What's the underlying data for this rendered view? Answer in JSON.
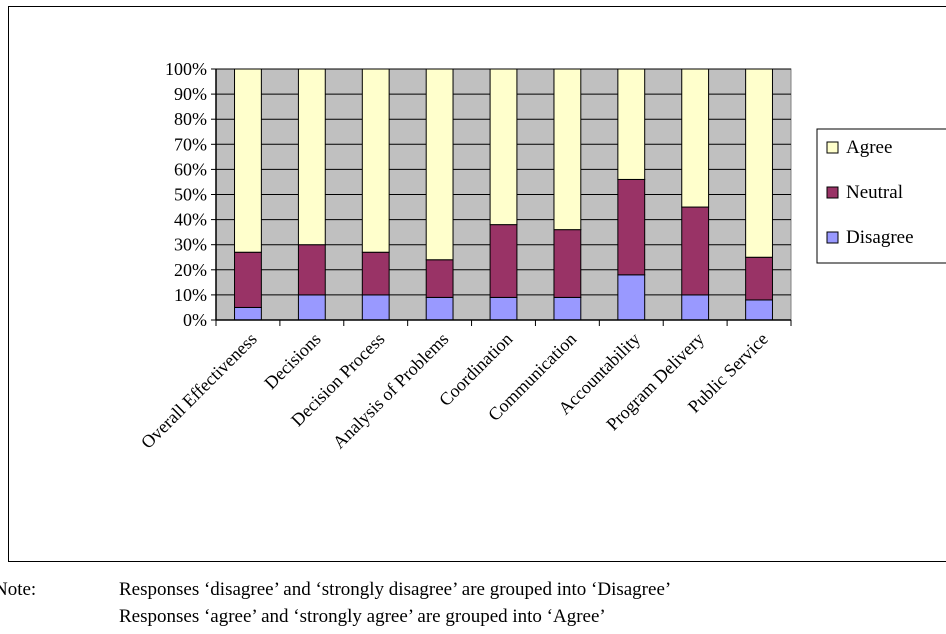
{
  "chart_data": {
    "type": "bar",
    "stacked": "percent",
    "categories": [
      "Overall Effectiveness",
      "Decisions",
      "Decision Process",
      "Analysis of Problems",
      "Coordination",
      "Communication",
      "Accountability",
      "Program Delivery",
      "Public Service"
    ],
    "series": [
      {
        "name": "Disagree",
        "color": "#9999ff",
        "values": [
          5,
          10,
          10,
          9,
          9,
          9,
          18,
          10,
          8
        ]
      },
      {
        "name": "Neutral",
        "color": "#993366",
        "values": [
          22,
          20,
          17,
          15,
          29,
          27,
          38,
          35,
          17
        ]
      },
      {
        "name": "Agree",
        "color": "#ffffcc",
        "values": [
          73,
          70,
          73,
          76,
          62,
          64,
          44,
          55,
          75
        ]
      }
    ],
    "ytick_labels": [
      "0%",
      "10%",
      "20%",
      "30%",
      "40%",
      "50%",
      "60%",
      "70%",
      "80%",
      "90%",
      "100%"
    ],
    "ylim": [
      0,
      100
    ],
    "grid": true,
    "plot_background": "#c0c0c0",
    "legend_position": "right",
    "legend_order": [
      "Agree",
      "Neutral",
      "Disagree"
    ]
  },
  "note": {
    "label": "Note:",
    "lines": [
      "Responses ‘disagree’ and ‘strongly disagree’ are grouped into ‘Disagree’",
      "Responses ‘agree’ and ‘strongly agree’ are grouped into ‘Agree’"
    ]
  }
}
